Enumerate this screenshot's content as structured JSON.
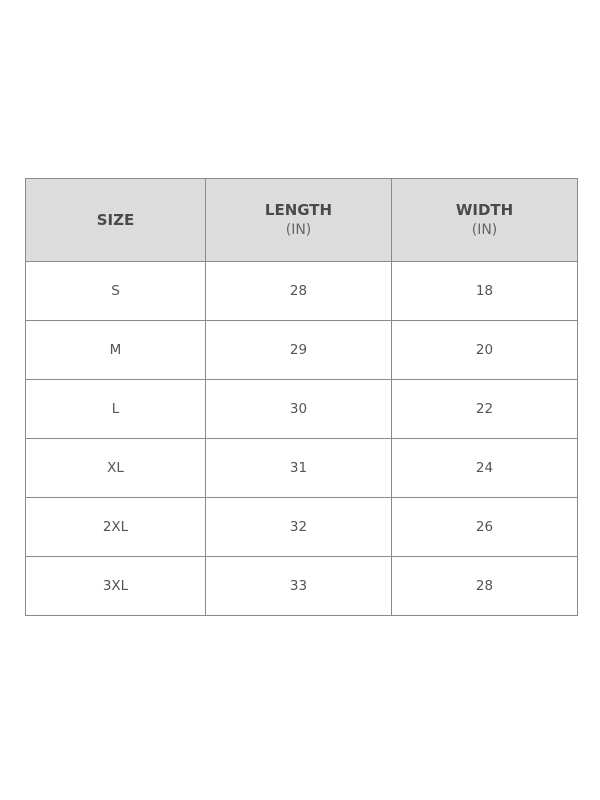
{
  "headers": [
    {
      "label": "SIZE",
      "unit": ""
    },
    {
      "label": "LENGTH",
      "unit": "(IN)"
    },
    {
      "label": "WIDTH",
      "unit": "(IN)"
    }
  ],
  "rows": [
    [
      "S",
      "28",
      "18"
    ],
    [
      "M",
      "29",
      "20"
    ],
    [
      "L",
      "30",
      "22"
    ],
    [
      "XL",
      "31",
      "24"
    ],
    [
      "2XL",
      "32",
      "26"
    ],
    [
      "3XL",
      "33",
      "28"
    ]
  ],
  "colors": {
    "header_bg": "#dcdcdc",
    "border": "#8a8a8a",
    "text": "#555555"
  }
}
